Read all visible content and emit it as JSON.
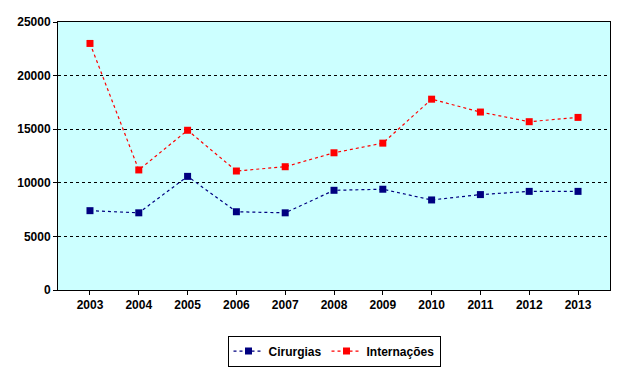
{
  "chart_data": {
    "type": "line",
    "categories": [
      "2003",
      "2004",
      "2005",
      "2006",
      "2007",
      "2008",
      "2009",
      "2010",
      "2011",
      "2012",
      "2013"
    ],
    "series": [
      {
        "name": "Cirurgias",
        "color": "#000080",
        "marker": "square",
        "line_style": "dotted",
        "values": [
          7400,
          7200,
          10600,
          7300,
          7200,
          9300,
          9400,
          8400,
          8900,
          9200,
          9200
        ]
      },
      {
        "name": "Internações",
        "color": "#ff0000",
        "marker": "square",
        "line_style": "dotted",
        "values": [
          23000,
          11200,
          14900,
          11100,
          11500,
          12800,
          13700,
          17800,
          16600,
          15700,
          16100
        ]
      }
    ],
    "ylim": [
      0,
      25000
    ],
    "yticks": [
      0,
      5000,
      10000,
      15000,
      20000,
      25000
    ],
    "grid": true,
    "legend": "bottom"
  }
}
